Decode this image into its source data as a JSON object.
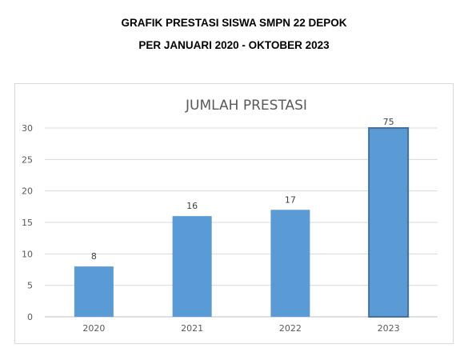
{
  "heading": {
    "line1": "GRAFIK PRESTASI SISWA SMPN 22 DEPOK",
    "line2": "PER JANUARI 2020 - OKTOBER 2023"
  },
  "chart_data": {
    "type": "bar",
    "title": "JUMLAH PRESTASI",
    "categories": [
      "2020",
      "2021",
      "2022",
      "2023"
    ],
    "values": [
      8,
      16,
      17,
      75
    ],
    "data_labels": [
      "8",
      "16",
      "17",
      "75"
    ],
    "bar_values_drawn": [
      8,
      16,
      17,
      30
    ],
    "yticks": [
      0,
      5,
      10,
      15,
      20,
      25,
      30
    ],
    "ylim": [
      0,
      30
    ],
    "grid": true,
    "legend": "none",
    "bar_color": "#5b9bd5",
    "highlight_border_color": "#41719c"
  }
}
